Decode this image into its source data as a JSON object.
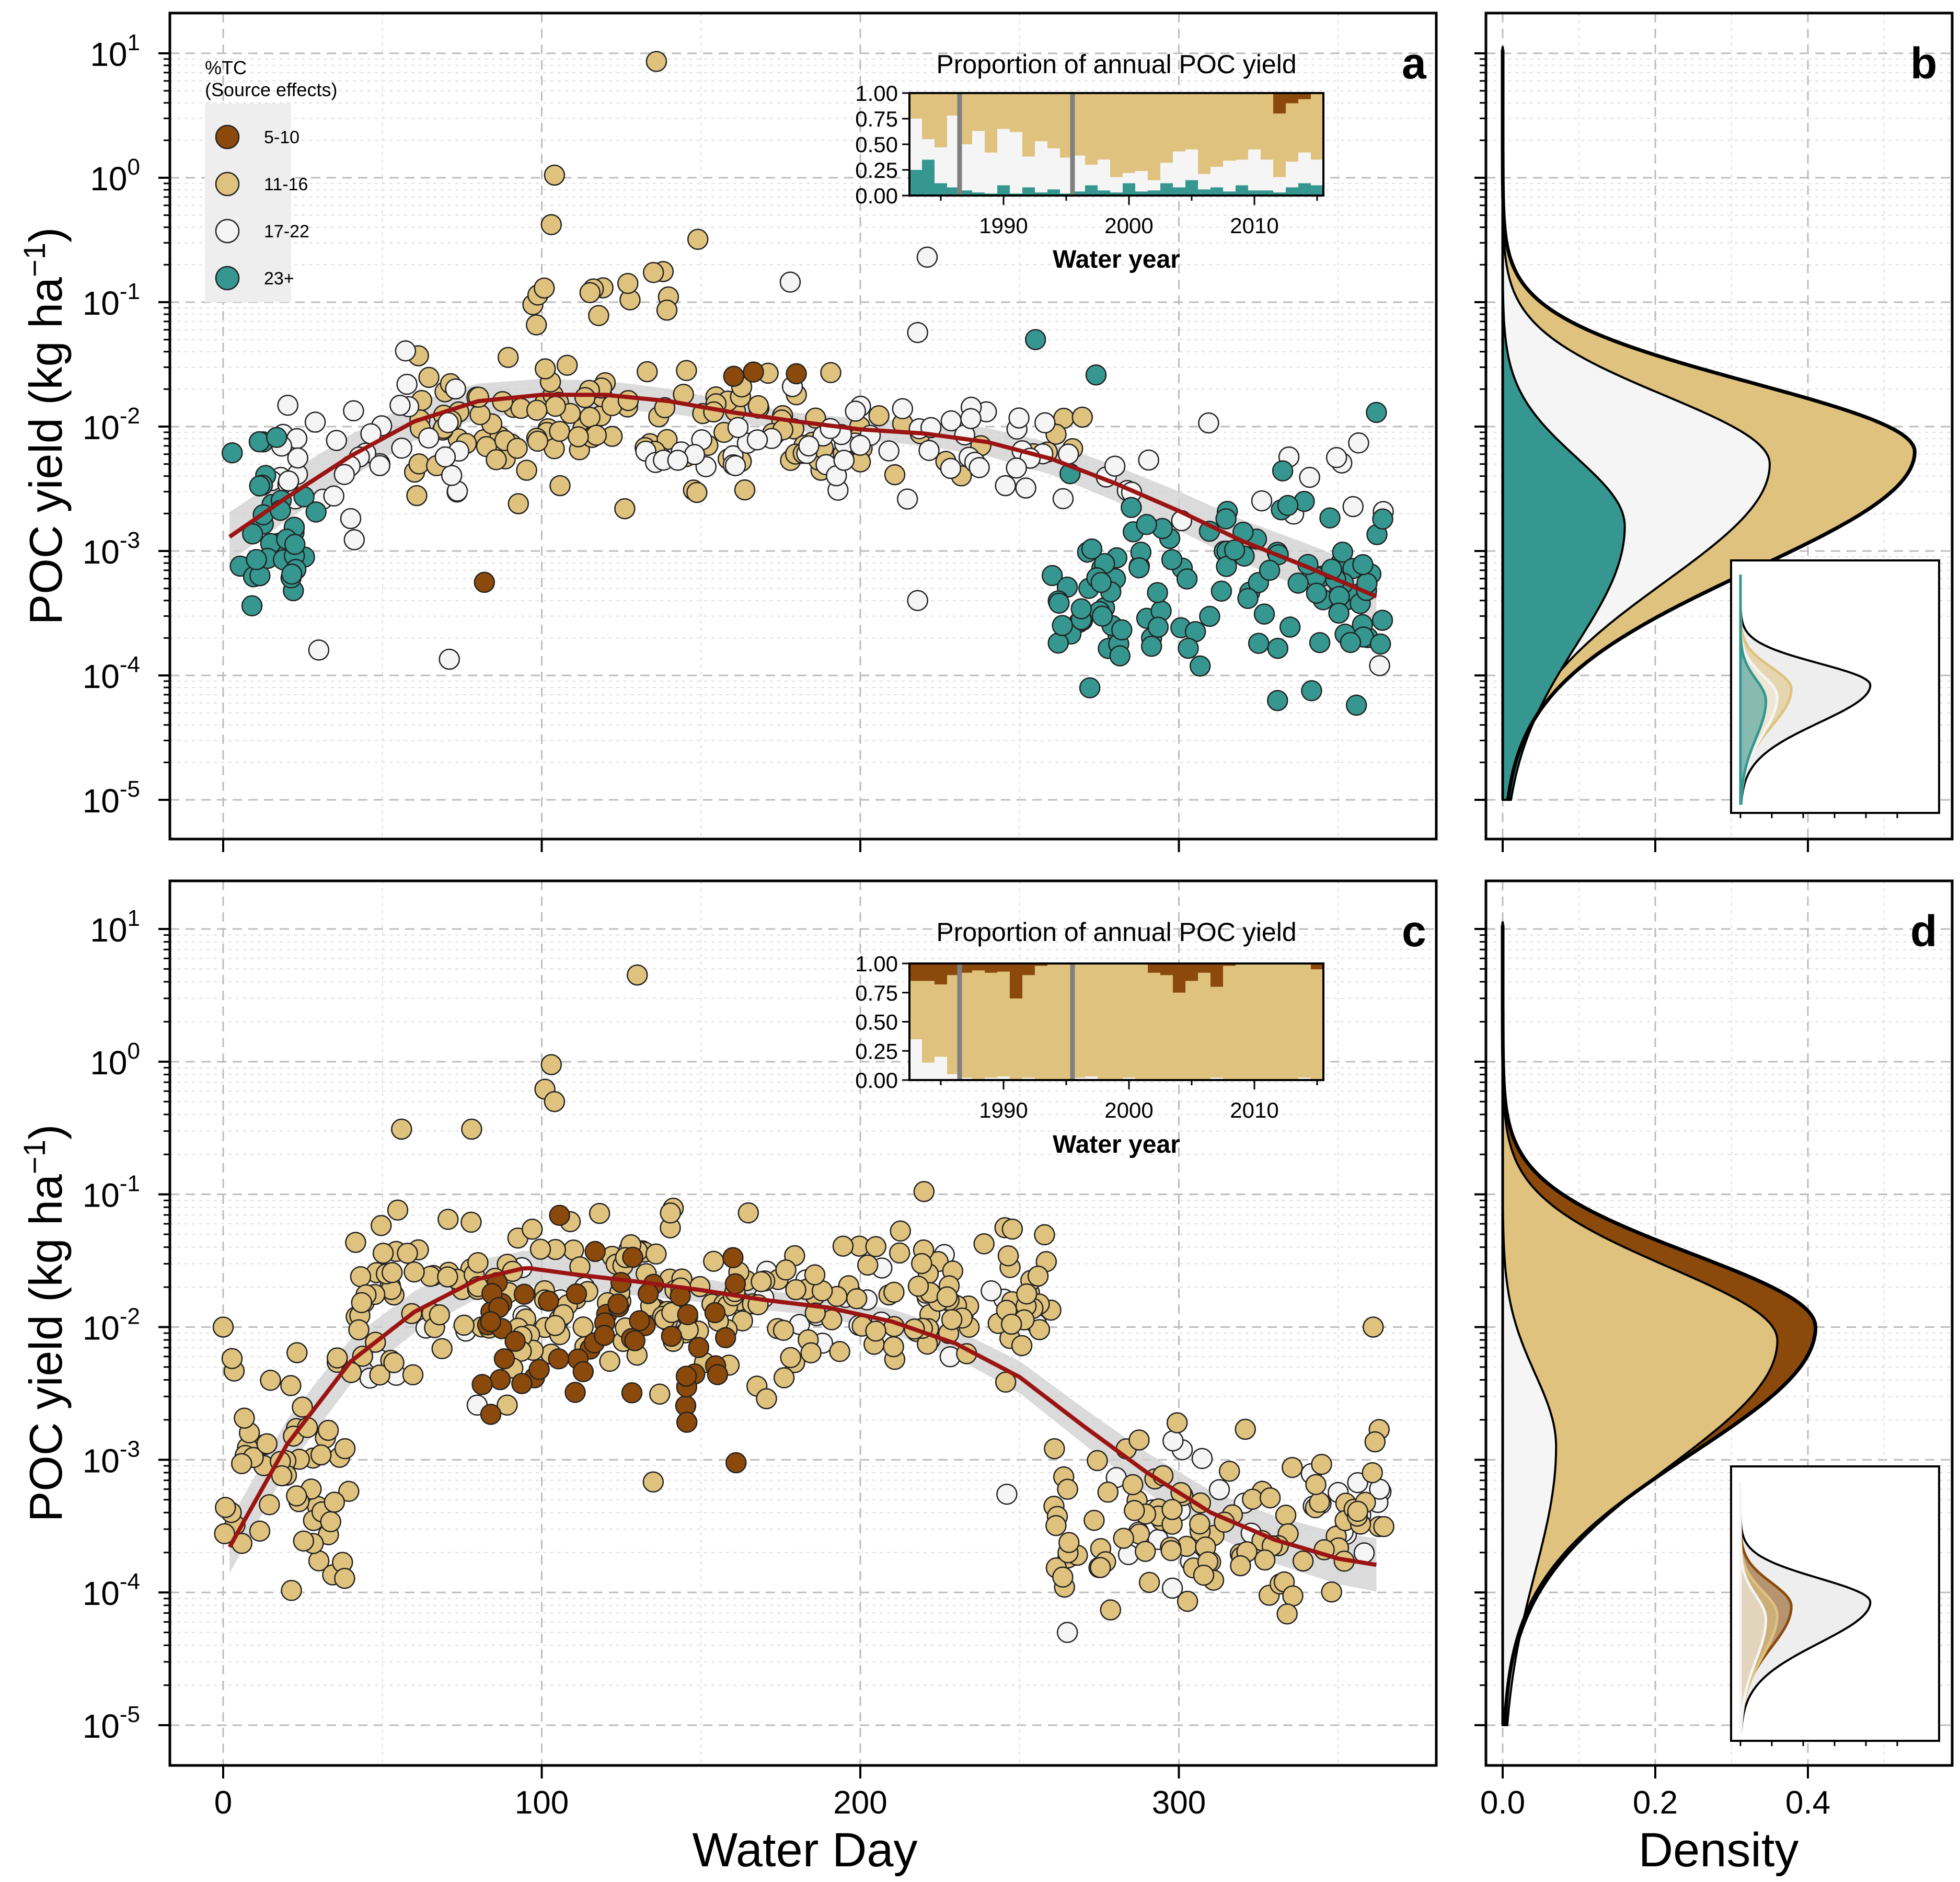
{
  "colors": {
    "c5_10": "#8b4a0b",
    "c11_16": "#dfc27d",
    "c17_22": "#f5f5f5",
    "c23": "#35978f",
    "trend": "#9b1414",
    "band": "#cfcfcf",
    "grey_marker": "#808080"
  },
  "icons": [
    "legend-circle-marker"
  ],
  "legend": {
    "title_line1": "%TC",
    "title_line2": "(Source effects)",
    "items": [
      {
        "label": "5-10",
        "color": "#8b4a0b"
      },
      {
        "label": "11-16",
        "color": "#dfc27d"
      },
      {
        "label": "17-22",
        "color": "#f5f5f5"
      },
      {
        "label": "23+",
        "color": "#35978f"
      }
    ]
  },
  "axes": {
    "ylabel_main": "POC yield (kg ha",
    "ylabel_sup": "−1",
    "ylabel_end": ")",
    "xlabel_left": "Water Day",
    "xlabel_right": "Density",
    "y_tick_base": "10",
    "y_tick_exps": [
      "-5",
      "-4",
      "-3",
      "-2",
      "-1",
      "0",
      "1"
    ],
    "x_ticks_day": [
      "0",
      "100",
      "200",
      "300"
    ],
    "x_ticks_density": [
      "0.0",
      "0.2",
      "0.4"
    ]
  },
  "inset": {
    "title": "Proportion of annual POC yield",
    "xlabel": "Water year",
    "yticks": [
      "1.00",
      "0.75",
      "0.50",
      "0.25",
      "0.00"
    ],
    "xticks": [
      "1990",
      "2000",
      "2010"
    ]
  },
  "chart_data": [
    {
      "panel_letter": "a",
      "type": "scatter",
      "xlabel": "Water Day",
      "ylabel": "POC yield (kg ha−1)",
      "xlim": [
        -15,
        372
      ],
      "ylim_log10": [
        -5.4,
        1.35
      ],
      "y_scale": "log",
      "legend_placement": "top-left",
      "trend": {
        "x": [
          2,
          20,
          40,
          60,
          80,
          100,
          120,
          140,
          160,
          180,
          200,
          220,
          240,
          260,
          280,
          300,
          320,
          340,
          363
        ],
        "y": [
          0.0013,
          0.0027,
          0.0058,
          0.011,
          0.016,
          0.018,
          0.018,
          0.016,
          0.013,
          0.011,
          0.0095,
          0.0088,
          0.0075,
          0.0055,
          0.0035,
          0.0021,
          0.0012,
          0.00075,
          0.00042
        ]
      },
      "clusters": [
        {
          "cls": 3,
          "x0": 0,
          "x1": 30,
          "lo": 0.00013,
          "hi": 0.02,
          "n": 34
        },
        {
          "cls": 2,
          "x0": 15,
          "x1": 75,
          "lo": 0.0007,
          "hi": 0.06,
          "n": 38
        },
        {
          "cls": 1,
          "x0": 60,
          "x1": 200,
          "lo": 0.002,
          "hi": 0.06,
          "n": 110
        },
        {
          "cls": 1,
          "x0": 90,
          "x1": 140,
          "lo": 0.05,
          "hi": 0.3,
          "n": 14
        },
        {
          "cls": 2,
          "x0": 130,
          "x1": 260,
          "lo": 0.0015,
          "hi": 0.03,
          "n": 55
        },
        {
          "cls": 3,
          "x0": 260,
          "x1": 365,
          "lo": 4e-05,
          "hi": 0.006,
          "n": 115
        },
        {
          "cls": 2,
          "x0": 260,
          "x1": 365,
          "lo": 0.0008,
          "hi": 0.015,
          "n": 18
        },
        {
          "cls": 1,
          "x0": 150,
          "x1": 270,
          "lo": 0.003,
          "hi": 0.02,
          "n": 25
        },
        {
          "cls": 0,
          "x0": 140,
          "x1": 190,
          "lo": 0.02,
          "hi": 0.04,
          "n": 3
        }
      ],
      "extra_points": [
        {
          "x": 136,
          "y": 8.6,
          "cls": 1
        },
        {
          "x": 104,
          "y": 1.05,
          "cls": 1
        },
        {
          "x": 103,
          "y": 0.42,
          "cls": 1
        },
        {
          "x": 149,
          "y": 0.32,
          "cls": 1
        },
        {
          "x": 82,
          "y": 0.00056,
          "cls": 0
        },
        {
          "x": 71,
          "y": 0.000135,
          "cls": 2
        },
        {
          "x": 30,
          "y": 0.00016,
          "cls": 2
        },
        {
          "x": 178,
          "y": 0.145,
          "cls": 2
        },
        {
          "x": 221,
          "y": 0.23,
          "cls": 2
        },
        {
          "x": 218,
          "y": 0.057,
          "cls": 2
        },
        {
          "x": 218,
          "y": 0.0004,
          "cls": 2
        },
        {
          "x": 274,
          "y": 0.026,
          "cls": 3
        },
        {
          "x": 255,
          "y": 0.05,
          "cls": 3
        },
        {
          "x": 362,
          "y": 0.013,
          "cls": 3
        },
        {
          "x": 363,
          "y": 0.00012,
          "cls": 2
        }
      ]
    },
    {
      "panel_letter": "c",
      "type": "scatter",
      "xlabel": "Water Day",
      "ylabel": "POC yield (kg ha−1)",
      "xlim": [
        -15,
        372
      ],
      "ylim_log10": [
        -5.4,
        1.35
      ],
      "y_scale": "log",
      "trend": {
        "x": [
          2,
          20,
          40,
          60,
          80,
          95,
          110,
          130,
          150,
          170,
          190,
          210,
          230,
          250,
          270,
          290,
          310,
          330,
          350,
          363
        ],
        "y": [
          0.00022,
          0.0013,
          0.0055,
          0.013,
          0.023,
          0.028,
          0.025,
          0.022,
          0.019,
          0.016,
          0.014,
          0.011,
          0.0075,
          0.0042,
          0.0018,
          0.0008,
          0.0004,
          0.00025,
          0.00018,
          0.00016
        ]
      },
      "clusters": [
        {
          "cls": 1,
          "x0": 0,
          "x1": 40,
          "lo": 4e-05,
          "hi": 0.02,
          "n": 55
        },
        {
          "cls": 1,
          "x0": 40,
          "x1": 260,
          "lo": 0.002,
          "hi": 0.12,
          "n": 230
        },
        {
          "cls": 0,
          "x0": 80,
          "x1": 165,
          "lo": 0.001,
          "hi": 0.08,
          "n": 55
        },
        {
          "cls": 1,
          "x0": 260,
          "x1": 365,
          "lo": 4e-05,
          "hi": 0.004,
          "n": 100
        },
        {
          "cls": 2,
          "x0": 90,
          "x1": 260,
          "lo": 0.004,
          "hi": 0.06,
          "n": 25
        },
        {
          "cls": 2,
          "x0": 280,
          "x1": 365,
          "lo": 0.0001,
          "hi": 0.002,
          "n": 25
        },
        {
          "cls": 2,
          "x0": 40,
          "x1": 80,
          "lo": 0.002,
          "hi": 0.02,
          "n": 6
        }
      ],
      "extra_points": [
        {
          "x": 130,
          "y": 4.5,
          "cls": 1
        },
        {
          "x": 103,
          "y": 0.95,
          "cls": 1
        },
        {
          "x": 101,
          "y": 0.62,
          "cls": 1
        },
        {
          "x": 104,
          "y": 0.5,
          "cls": 1
        },
        {
          "x": 56,
          "y": 0.31,
          "cls": 1
        },
        {
          "x": 78,
          "y": 0.31,
          "cls": 1
        },
        {
          "x": 220,
          "y": 0.105,
          "cls": 1
        },
        {
          "x": 135,
          "y": 0.00068,
          "cls": 1
        },
        {
          "x": 0,
          "y": 0.01,
          "cls": 1
        },
        {
          "x": 265,
          "y": 5e-05,
          "cls": 2
        },
        {
          "x": 361,
          "y": 0.01,
          "cls": 1
        },
        {
          "x": 161,
          "y": 0.00095,
          "cls": 0
        },
        {
          "x": 84,
          "y": 0.0022,
          "cls": 0
        },
        {
          "x": 363,
          "y": 0.0006,
          "cls": 2
        },
        {
          "x": 246,
          "y": 0.00055,
          "cls": 2
        }
      ]
    },
    {
      "panel_letter": "b",
      "type": "area",
      "xlabel": "Density",
      "ylabel": "POC yield (kg ha−1)",
      "xlim": [
        -0.04,
        0.58
      ],
      "y_scale": "log",
      "series": [
        {
          "color": "#dfc27d",
          "peak_log10": -2.2,
          "peak_density": 0.54
        },
        {
          "color": "#f5f5f5",
          "peak_log10": -2.3,
          "peak_density": 0.35
        },
        {
          "color": "#35978f",
          "peak_log10": -2.8,
          "peak_density": 0.16
        }
      ]
    },
    {
      "panel_letter": "d",
      "type": "area",
      "xlabel": "Density",
      "ylabel": "POC yield (kg ha−1)",
      "xlim": [
        -0.04,
        0.58
      ],
      "y_scale": "log",
      "series": [
        {
          "color": "#8b4a0b",
          "peak_log10": -2.0,
          "peak_density": 0.41
        },
        {
          "color": "#dfc27d",
          "peak_log10": -2.1,
          "peak_density": 0.36
        },
        {
          "color": "#f5f5f5",
          "peak_log10": -2.9,
          "peak_density": 0.07
        }
      ]
    },
    {
      "chart": "inset-a",
      "type": "bar",
      "title": "Proportion of annual POC yield",
      "xlabel": "Water year",
      "stacked": true,
      "years": [
        1983,
        1984,
        1985,
        1986,
        1987,
        1988,
        1989,
        1990,
        1991,
        1992,
        1993,
        1994,
        1995,
        1996,
        1997,
        1998,
        1999,
        2000,
        2001,
        2002,
        2003,
        2004,
        2005,
        2006,
        2007,
        2008,
        2009,
        2010,
        2011,
        2012,
        2013,
        2014,
        2015
      ],
      "series": [
        {
          "color": "#35978f",
          "values": [
            0.25,
            0.35,
            0.12,
            0.08,
            0.05,
            0.03,
            0.02,
            0.1,
            0.02,
            0.08,
            0.03,
            0.06,
            0.02,
            0.04,
            0.1,
            0.05,
            0.03,
            0.12,
            0.04,
            0.05,
            0.12,
            0.08,
            0.15,
            0.06,
            0.08,
            0.04,
            0.1,
            0.05,
            0.05,
            0.03,
            0.08,
            0.12,
            0.1
          ]
        },
        {
          "color": "#f5f5f5",
          "values": [
            0.5,
            0.2,
            0.35,
            0.7,
            0.45,
            0.6,
            0.4,
            0.55,
            0.6,
            0.3,
            0.5,
            0.4,
            0.35,
            0.35,
            0.2,
            0.3,
            0.15,
            0.1,
            0.2,
            0.1,
            0.2,
            0.35,
            0.3,
            0.15,
            0.2,
            0.3,
            0.25,
            0.4,
            0.3,
            0.15,
            0.25,
            0.3,
            0.25
          ]
        },
        {
          "color": "#dfc27d",
          "values": [
            0.25,
            0.45,
            0.53,
            0.22,
            0.5,
            0.37,
            0.58,
            0.35,
            0.38,
            0.62,
            0.47,
            0.54,
            0.63,
            0.61,
            0.7,
            0.65,
            0.82,
            0.78,
            0.76,
            0.85,
            0.68,
            0.57,
            0.55,
            0.79,
            0.72,
            0.66,
            0.65,
            0.55,
            0.65,
            0.62,
            0.57,
            0.52,
            0.65
          ]
        },
        {
          "color": "#8b4a0b",
          "values": [
            0,
            0,
            0,
            0,
            0,
            0,
            0,
            0,
            0,
            0,
            0,
            0,
            0,
            0,
            0,
            0,
            0,
            0,
            0,
            0,
            0,
            0,
            0,
            0,
            0,
            0,
            0,
            0,
            0,
            0.2,
            0.1,
            0.06,
            0
          ]
        }
      ],
      "markers": [
        1986.5,
        1995.5
      ]
    },
    {
      "chart": "inset-c",
      "type": "bar",
      "title": "Proportion of annual POC yield",
      "xlabel": "Water year",
      "stacked": true,
      "years": [
        1983,
        1984,
        1985,
        1986,
        1987,
        1988,
        1989,
        1990,
        1991,
        1992,
        1993,
        1994,
        1995,
        1996,
        1997,
        1998,
        1999,
        2000,
        2001,
        2002,
        2003,
        2004,
        2005,
        2006,
        2007,
        2008,
        2009,
        2010,
        2011,
        2012,
        2013,
        2014,
        2015
      ],
      "series": [
        {
          "color": "#35978f",
          "values": [
            0,
            0,
            0,
            0,
            0,
            0,
            0,
            0,
            0,
            0,
            0,
            0,
            0,
            0,
            0,
            0,
            0,
            0,
            0,
            0,
            0,
            0,
            0,
            0,
            0,
            0,
            0,
            0,
            0,
            0,
            0,
            0,
            0
          ]
        },
        {
          "color": "#f5f5f5",
          "values": [
            0.35,
            0.15,
            0.2,
            0.05,
            0.02,
            0,
            0.02,
            0.03,
            0,
            0.02,
            0,
            0,
            0,
            0.02,
            0.03,
            0,
            0,
            0.02,
            0,
            0,
            0,
            0,
            0,
            0,
            0.02,
            0,
            0,
            0,
            0,
            0,
            0,
            0.02,
            0
          ]
        },
        {
          "color": "#dfc27d",
          "values": [
            0.5,
            0.7,
            0.62,
            0.85,
            0.9,
            0.94,
            0.9,
            0.9,
            0.7,
            0.88,
            0.98,
            1,
            1,
            0.98,
            0.97,
            1,
            1,
            0.98,
            1,
            0.92,
            0.9,
            0.75,
            0.85,
            0.92,
            0.78,
            0.98,
            1,
            1,
            1,
            1,
            1,
            0.98,
            0.95
          ]
        },
        {
          "color": "#8b4a0b",
          "values": [
            0.15,
            0.15,
            0.18,
            0.1,
            0.08,
            0.06,
            0.08,
            0.07,
            0.3,
            0.1,
            0.02,
            0,
            0,
            0,
            0,
            0,
            0,
            0,
            0,
            0.08,
            0.1,
            0.25,
            0.15,
            0.08,
            0.2,
            0.02,
            0,
            0,
            0,
            0,
            0,
            0,
            0.05
          ]
        }
      ],
      "markers": [
        1986.5,
        1995.5
      ]
    }
  ]
}
